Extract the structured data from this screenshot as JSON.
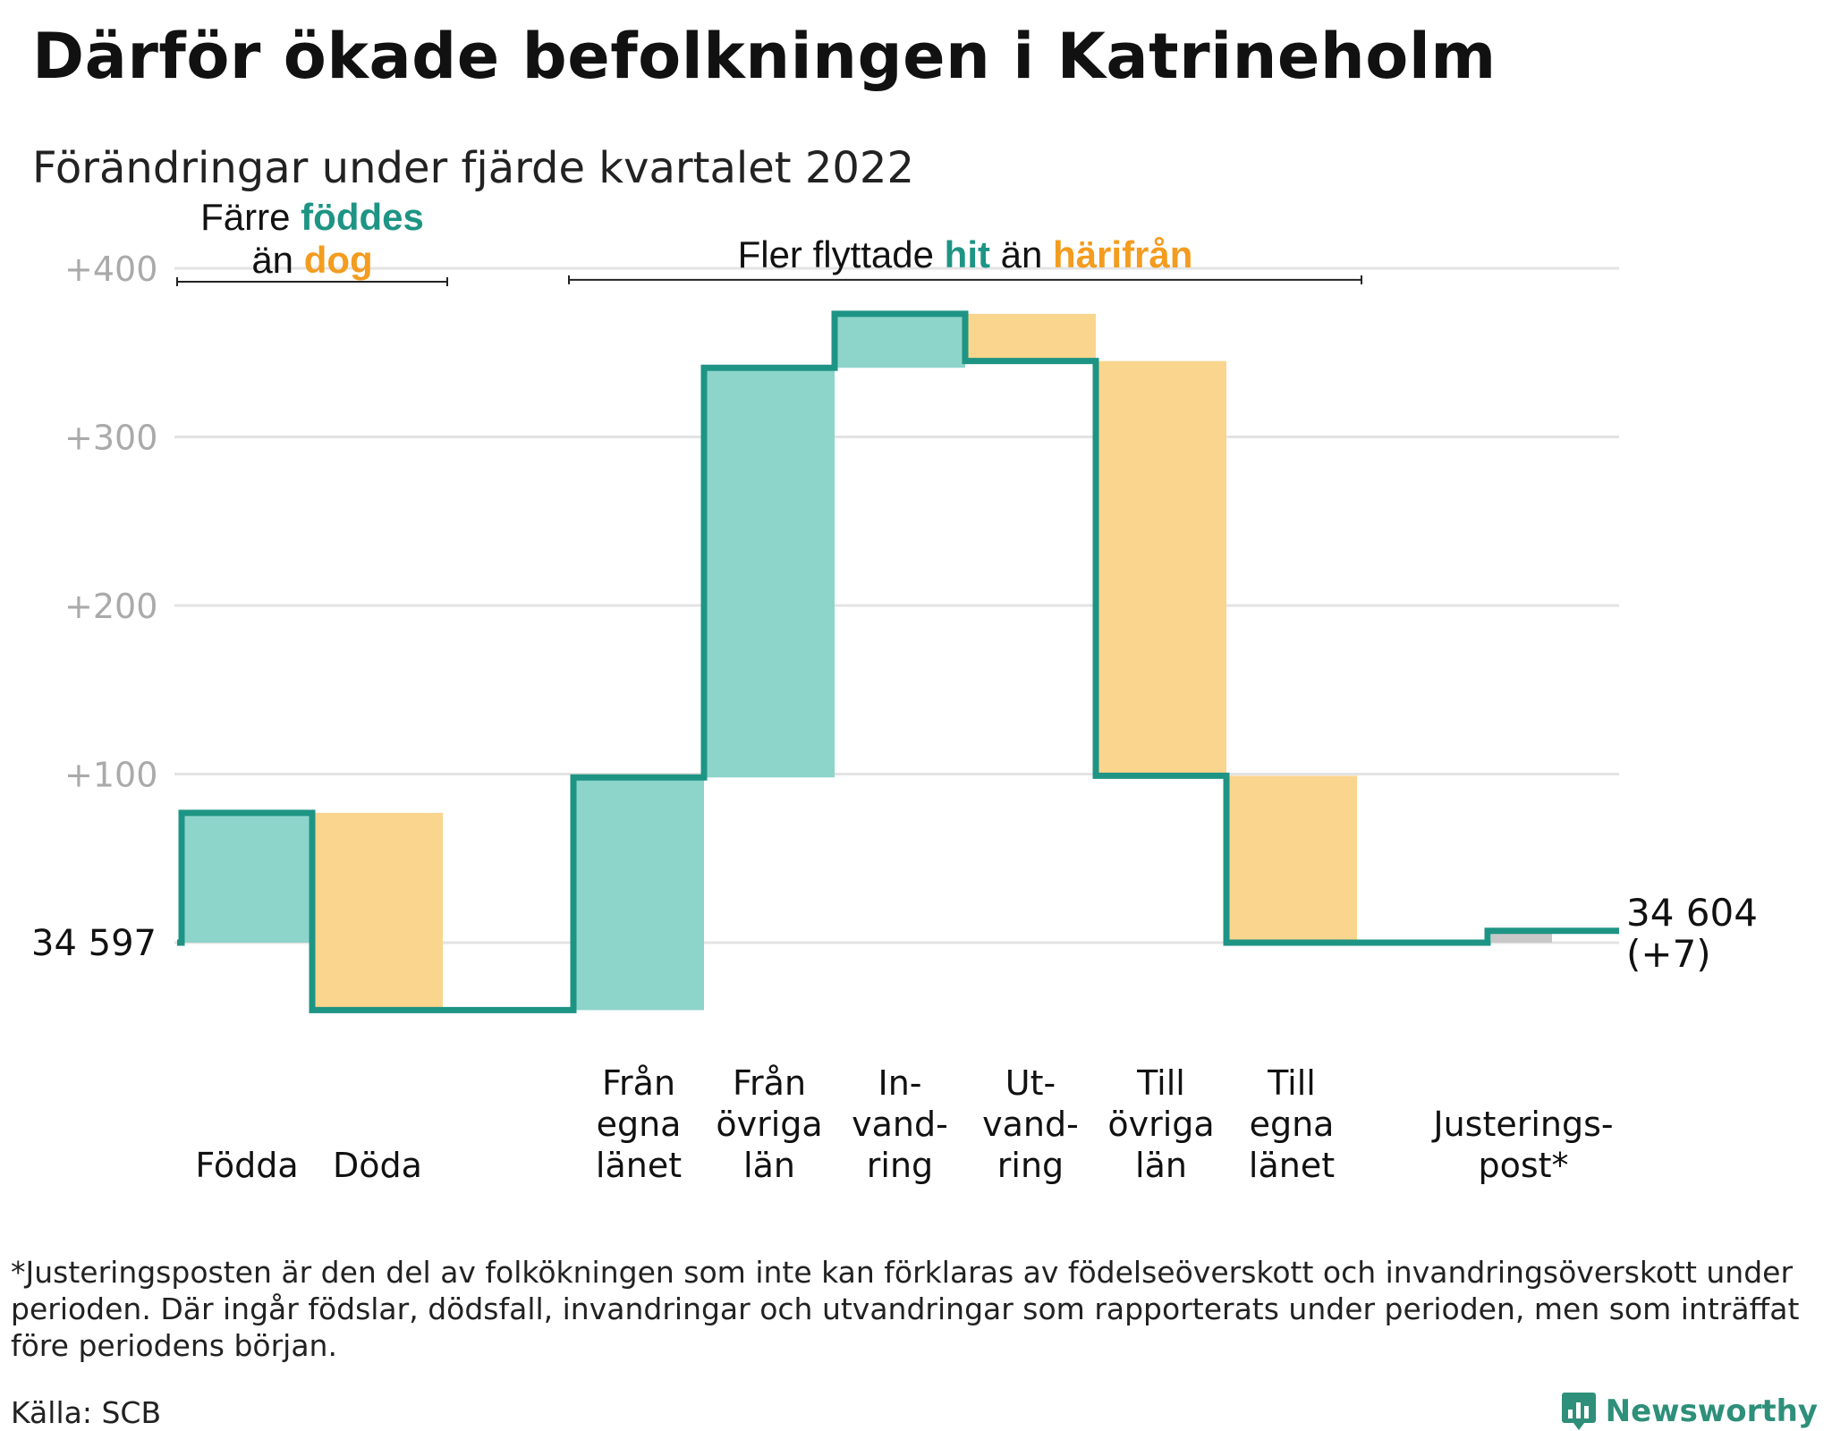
{
  "title": "Därför ökade befolkningen i Katrineholm",
  "subtitle": "Förändringar under fjärde kvartalet 2022",
  "footnote": "*Justeringsposten är den del av folkökningen som inte kan förklaras av födelseöverskott och invandringsöverskott under perioden. Där ingår födslar, dödsfall, invandringar och utvandringar som rapporterats under perioden, men som inträffat före periodens början.",
  "source": "Källa: SCB",
  "brand": "Newsworthy",
  "colors": {
    "increase": "#8dd4cb",
    "decrease": "#fad58e",
    "line": "#1e9484",
    "adjustment": "#c8c8c8",
    "accent_green": "#1e9484",
    "accent_orange": "#f39c1f",
    "grid": "#e3e3e3",
    "tick": "#aaaaaa"
  },
  "chart_data": {
    "type": "waterfall",
    "start_value": 34597,
    "start_label": "34 597",
    "end_label_line1": "34 604",
    "end_label_line2": "(+7)",
    "y_ticks": [
      {
        "value": 100,
        "label": "+100"
      },
      {
        "value": 200,
        "label": "+200"
      },
      {
        "value": 300,
        "label": "+300"
      },
      {
        "value": 400,
        "label": "+400"
      }
    ],
    "ylim": [
      -50,
      420
    ],
    "grid": true,
    "steps": [
      {
        "label": [
          "Födda"
        ],
        "delta": 77,
        "kind": "increase"
      },
      {
        "label": [
          "Döda"
        ],
        "delta": -117,
        "kind": "decrease"
      },
      {
        "label": [],
        "delta": 0,
        "kind": "gap"
      },
      {
        "label": [
          "Från",
          "egna",
          "länet"
        ],
        "delta": 138,
        "kind": "increase"
      },
      {
        "label": [
          "Från",
          "övriga",
          "län"
        ],
        "delta": 243,
        "kind": "increase"
      },
      {
        "label": [
          "In-",
          "vand-",
          "ring"
        ],
        "delta": 32,
        "kind": "increase"
      },
      {
        "label": [
          "Ut-",
          "vand-",
          "ring"
        ],
        "delta": -28,
        "kind": "decrease"
      },
      {
        "label": [
          "Till",
          "övriga",
          "län"
        ],
        "delta": -246,
        "kind": "decrease"
      },
      {
        "label": [
          "Till",
          "egna",
          "länet"
        ],
        "delta": -99,
        "kind": "decrease"
      },
      {
        "label": [],
        "delta": 0,
        "kind": "gap"
      },
      {
        "label": [
          "Justerings-",
          "post*"
        ],
        "delta": 7,
        "kind": "adjustment"
      }
    ],
    "annotations": [
      {
        "text_parts": [
          [
            "Färre ",
            "black"
          ],
          [
            "föddes",
            "green"
          ]
        ],
        "text_parts2": [
          [
            "än ",
            "black"
          ],
          [
            "dog",
            "orange"
          ]
        ],
        "from_step": 0,
        "to_step": 1
      },
      {
        "text_parts": [
          [
            "Fler flyttade ",
            "black"
          ],
          [
            "hit",
            "green"
          ],
          [
            " än ",
            "black"
          ],
          [
            "härifrån",
            "orange"
          ]
        ],
        "from_step": 3,
        "to_step": 8
      }
    ]
  }
}
